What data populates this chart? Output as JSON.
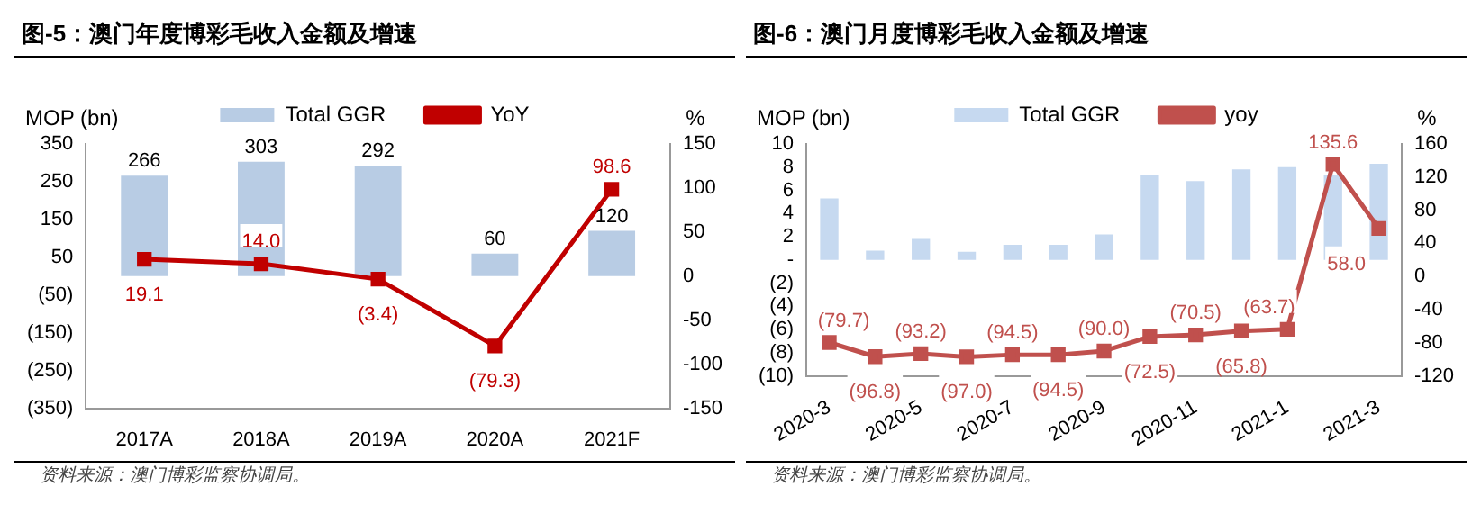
{
  "chart_data": [
    {
      "type": "bar",
      "title": "图-5：澳门年度博彩毛收入金额及增速",
      "ylabel": "MOP (bn)",
      "y2label": "%",
      "categories": [
        "2017A",
        "2018A",
        "2019A",
        "2020A",
        "2021F"
      ],
      "series": [
        {
          "name": "Total GGR",
          "color": "#b8cce4",
          "values": [
            266,
            303,
            292,
            60,
            120
          ]
        },
        {
          "name": "YoY",
          "type": "line",
          "axis": "y2",
          "color": "#c00000",
          "values": [
            19.1,
            14.0,
            -3.4,
            -79.3,
            98.6
          ],
          "value_labels": [
            "19.1",
            "14.0",
            "(3.4)",
            "(79.3)",
            "98.6"
          ]
        }
      ],
      "ylim": [
        -350,
        350
      ],
      "yticks": [
        {
          "value": -350,
          "label": "(350)"
        },
        {
          "value": -250,
          "label": "(250)"
        },
        {
          "value": -150,
          "label": "(150)"
        },
        {
          "value": -50,
          "label": "(50)"
        },
        50,
        150,
        250,
        350
      ],
      "y2lim": [
        -150,
        150
      ],
      "y2ticks": [
        -150,
        -100,
        -50,
        0,
        50,
        100,
        150
      ],
      "data_labels": true,
      "legend": "top",
      "marker": "square",
      "grid": false,
      "annotations": [
        "资料来源：澳门博彩监察协调局。"
      ]
    },
    {
      "type": "bar",
      "title": "图-6：澳门月度博彩毛收入金额及增速",
      "ylabel": "MOP (bn)",
      "y2label": "%",
      "categories": [
        "2020-3",
        null,
        "2020-5",
        null,
        "2020-7",
        null,
        "2020-9",
        null,
        "2020-11",
        null,
        "2021-1",
        null,
        "2021-3"
      ],
      "series": [
        {
          "name": "Total GGR",
          "color": "#c6d9f0",
          "values": [
            5.3,
            0.8,
            1.8,
            0.7,
            1.3,
            1.3,
            2.2,
            7.3,
            6.8,
            7.8,
            8.0,
            7.3,
            8.3
          ]
        },
        {
          "name": "yoy",
          "type": "line",
          "axis": "y2",
          "color": "#c0504d",
          "values": [
            -79.7,
            -96.8,
            -93.2,
            -97.0,
            -94.5,
            -94.5,
            -90.0,
            -72.5,
            -70.5,
            -65.8,
            -63.7,
            135.6,
            58.0
          ],
          "value_labels": [
            "(79.7)",
            "(96.8)",
            "(93.2)",
            "(97.0)",
            "(94.5)",
            "(94.5)",
            "(90.0)",
            "(72.5)",
            "(70.5)",
            "(65.8)",
            "(63.7)",
            "135.6",
            "58.0"
          ]
        }
      ],
      "ylim": [
        -10,
        10
      ],
      "yticks": [
        {
          "value": -10,
          "label": "(10)"
        },
        {
          "value": -8,
          "label": "(8)"
        },
        {
          "value": -6,
          "label": "(6)"
        },
        {
          "value": -4,
          "label": "(4)"
        },
        {
          "value": -2,
          "label": "(2)"
        },
        {
          "value": 0,
          "label": "-"
        },
        2,
        4,
        6,
        8,
        10
      ],
      "y2lim": [
        -120,
        160
      ],
      "y2ticks": [
        -120,
        -80,
        -40,
        0,
        40,
        80,
        120,
        160
      ],
      "legend": "top",
      "marker": "square",
      "grid": false,
      "annotations": [
        "资料来源：澳门博彩监察协调局。"
      ]
    }
  ]
}
